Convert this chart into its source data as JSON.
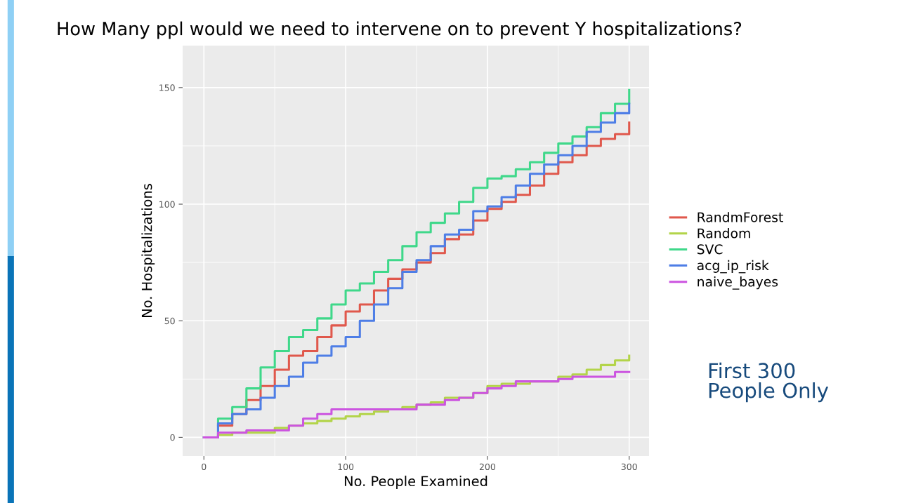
{
  "chart_data": {
    "type": "step",
    "title": "How Many ppl would we need to intervene on to prevent Y hospitalizations?",
    "xlabel": "No. People Examined",
    "ylabel": "No. Hospitalizations",
    "x": [
      0,
      10,
      20,
      30,
      40,
      50,
      60,
      70,
      80,
      90,
      100,
      110,
      120,
      130,
      140,
      150,
      160,
      170,
      180,
      190,
      200,
      210,
      220,
      230,
      240,
      250,
      260,
      270,
      280,
      290,
      300
    ],
    "series": [
      {
        "name": "RandmForest",
        "color": "#e0584c",
        "values": [
          null,
          5,
          10,
          16,
          22,
          29,
          35,
          37,
          43,
          48,
          54,
          57,
          63,
          68,
          72,
          75,
          79,
          85,
          87,
          93,
          98,
          101,
          104,
          108,
          113,
          118,
          121,
          125,
          128,
          130,
          135
        ]
      },
      {
        "name": "Random",
        "color": "#b3d44a",
        "values": [
          0,
          1,
          2,
          2,
          2,
          4,
          5,
          6,
          7,
          8,
          9,
          10,
          11,
          12,
          13,
          14,
          15,
          17,
          17,
          19,
          22,
          23,
          23,
          24,
          24,
          26,
          27,
          29,
          31,
          33,
          35
        ]
      },
      {
        "name": "SVC",
        "color": "#3fd88a",
        "values": [
          0,
          8,
          13,
          21,
          30,
          37,
          43,
          46,
          51,
          57,
          63,
          66,
          71,
          76,
          82,
          88,
          92,
          96,
          101,
          107,
          111,
          112,
          115,
          118,
          122,
          126,
          129,
          133,
          139,
          143,
          149
        ]
      },
      {
        "name": "acg_ip_risk",
        "color": "#4e7ee6",
        "values": [
          0,
          6,
          10,
          12,
          17,
          22,
          26,
          32,
          35,
          39,
          43,
          50,
          57,
          64,
          71,
          76,
          82,
          87,
          89,
          97,
          99,
          103,
          108,
          113,
          117,
          121,
          125,
          131,
          135,
          139,
          143
        ]
      },
      {
        "name": "naive_bayes",
        "color": "#cc55e0",
        "values": [
          0,
          2,
          2,
          3,
          3,
          3,
          5,
          8,
          10,
          12,
          12,
          12,
          12,
          12,
          12,
          14,
          14,
          16,
          17,
          19,
          21,
          22,
          24,
          24,
          24,
          25,
          26,
          26,
          26,
          28,
          28
        ]
      }
    ],
    "xlim": [
      -15,
      314
    ],
    "ylim": [
      -8,
      168
    ],
    "xticks": [
      0,
      100,
      200,
      300
    ],
    "yticks": [
      0,
      50,
      100,
      150
    ],
    "grid": true,
    "legend": "right",
    "annotations": [
      "First 300\nPeople Only"
    ]
  }
}
